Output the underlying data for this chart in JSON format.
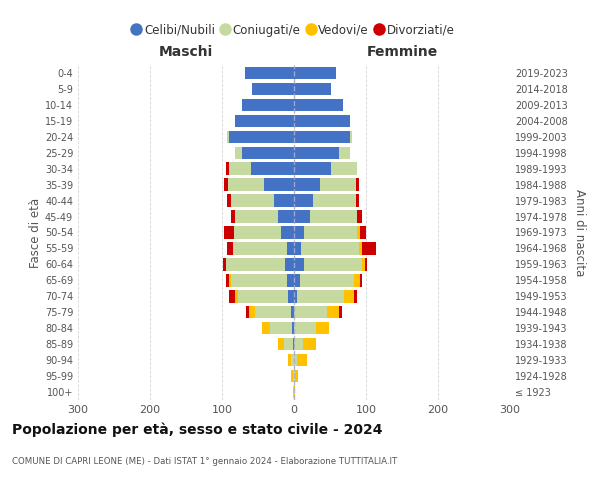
{
  "age_groups": [
    "100+",
    "95-99",
    "90-94",
    "85-89",
    "80-84",
    "75-79",
    "70-74",
    "65-69",
    "60-64",
    "55-59",
    "50-54",
    "45-49",
    "40-44",
    "35-39",
    "30-34",
    "25-29",
    "20-24",
    "15-19",
    "10-14",
    "5-9",
    "0-4"
  ],
  "birth_years": [
    "≤ 1923",
    "1924-1928",
    "1929-1933",
    "1934-1938",
    "1939-1943",
    "1944-1948",
    "1949-1953",
    "1954-1958",
    "1959-1963",
    "1964-1968",
    "1969-1973",
    "1974-1978",
    "1979-1983",
    "1984-1988",
    "1989-1993",
    "1994-1998",
    "1999-2003",
    "2004-2008",
    "2009-2013",
    "2014-2018",
    "2019-2023"
  ],
  "colors": {
    "celibi": "#4472c4",
    "coniugati": "#c5d9a0",
    "vedovi": "#ffc000",
    "divorziati": "#cc0000"
  },
  "males_celibi": [
    0,
    0,
    0,
    2,
    3,
    4,
    8,
    10,
    12,
    10,
    18,
    22,
    28,
    42,
    60,
    72,
    90,
    82,
    72,
    58,
    68
  ],
  "males_coniugati": [
    1,
    2,
    4,
    12,
    30,
    50,
    70,
    78,
    82,
    75,
    65,
    60,
    60,
    50,
    30,
    10,
    3,
    0,
    0,
    0,
    0
  ],
  "males_vedovi": [
    0,
    2,
    4,
    8,
    12,
    8,
    4,
    2,
    0,
    0,
    0,
    0,
    0,
    0,
    0,
    0,
    0,
    0,
    0,
    0,
    0
  ],
  "males_divorziati": [
    0,
    0,
    0,
    0,
    0,
    4,
    8,
    5,
    5,
    8,
    14,
    5,
    5,
    5,
    4,
    0,
    0,
    0,
    0,
    0,
    0
  ],
  "females_celibi": [
    0,
    0,
    0,
    0,
    0,
    0,
    4,
    8,
    14,
    10,
    14,
    22,
    26,
    36,
    52,
    62,
    78,
    78,
    68,
    52,
    58
  ],
  "females_coniugati": [
    0,
    2,
    4,
    12,
    30,
    46,
    66,
    75,
    80,
    80,
    74,
    65,
    60,
    50,
    36,
    16,
    3,
    0,
    0,
    0,
    0
  ],
  "females_vedovi": [
    2,
    4,
    14,
    18,
    18,
    16,
    14,
    8,
    4,
    4,
    4,
    0,
    0,
    0,
    0,
    0,
    0,
    0,
    0,
    0,
    0
  ],
  "females_divorziati": [
    0,
    0,
    0,
    0,
    0,
    4,
    4,
    4,
    4,
    20,
    8,
    8,
    4,
    4,
    0,
    0,
    0,
    0,
    0,
    0,
    0
  ],
  "title": "Popolazione per età, sesso e stato civile - 2024",
  "subtitle": "COMUNE DI CAPRI LEONE (ME) - Dati ISTAT 1° gennaio 2024 - Elaborazione TUTTITALIA.IT",
  "ylabel_left": "Fasce di età",
  "ylabel_right": "Anni di nascita",
  "label_maschi": "Maschi",
  "label_femmine": "Femmine",
  "legend_labels": [
    "Celibi/Nubili",
    "Coniugati/e",
    "Vedovi/e",
    "Divorziati/e"
  ],
  "xlim": 300,
  "background_color": "#ffffff",
  "grid_color": "#cccccc"
}
